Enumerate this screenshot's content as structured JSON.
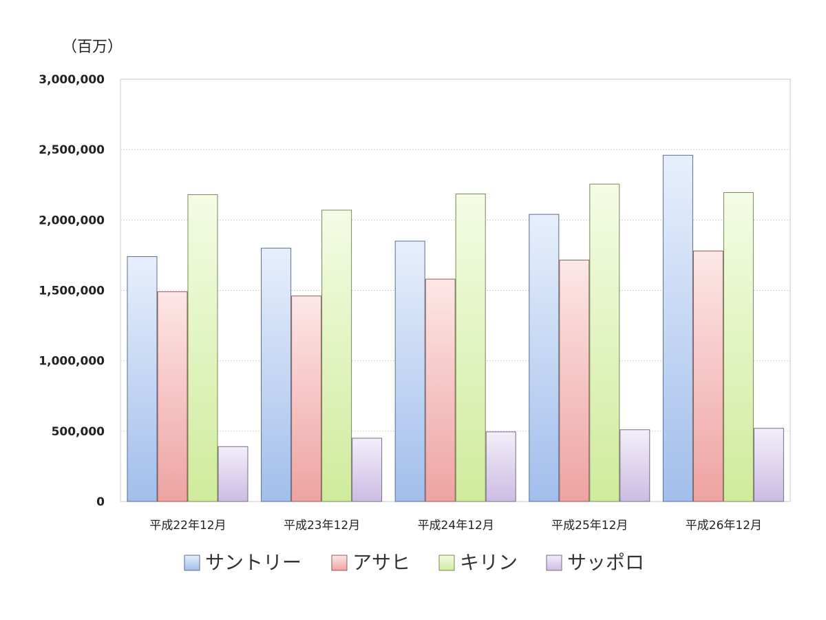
{
  "chart_data": {
    "type": "bar",
    "unit_label": "（百万）",
    "categories": [
      "平成22年12月",
      "平成23年12月",
      "平成24年12月",
      "平成25年12月",
      "平成26年12月"
    ],
    "series": [
      {
        "name": "サントリー",
        "values": [
          1740000,
          1800000,
          1850000,
          2040000,
          2460000
        ],
        "color": "#a9c6f5"
      },
      {
        "name": "アサヒ",
        "values": [
          1490000,
          1460000,
          1580000,
          1715000,
          1780000
        ],
        "color": "#f7aaa8"
      },
      {
        "name": "キリン",
        "values": [
          2180000,
          2070000,
          2185000,
          2255000,
          2195000
        ],
        "color": "#d8f5a3"
      },
      {
        "name": "サッポロ",
        "values": [
          390000,
          450000,
          495000,
          510000,
          520000
        ],
        "color": "#d4c4ec"
      }
    ],
    "ylim": [
      0,
      3000000
    ],
    "yticks": [
      "0",
      "500,000",
      "1,000,000",
      "1,500,000",
      "2,000,000",
      "2,500,000",
      "3,000,000"
    ],
    "grid": true,
    "legend_position": "bottom"
  }
}
